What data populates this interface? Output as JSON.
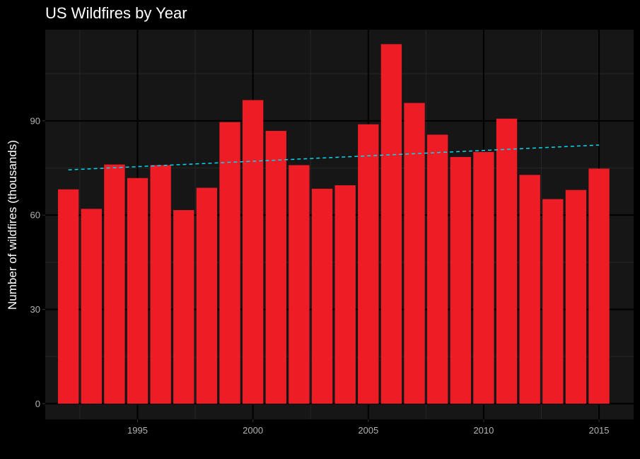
{
  "chart_data": {
    "type": "bar",
    "title": "US Wildfires by Year",
    "xlabel": "",
    "ylabel": "Number of wildfires (thousands)",
    "x": [
      1992,
      1993,
      1994,
      1995,
      1996,
      1997,
      1998,
      1999,
      2000,
      2001,
      2002,
      2003,
      2004,
      2005,
      2006,
      2007,
      2008,
      2009,
      2010,
      2011,
      2012,
      2013,
      2014,
      2015
    ],
    "values": [
      68.2,
      62.0,
      76.1,
      71.8,
      75.9,
      61.6,
      68.7,
      89.6,
      96.6,
      86.8,
      75.9,
      68.4,
      69.5,
      88.9,
      114.4,
      95.7,
      85.6,
      78.5,
      80.1,
      90.7,
      72.8,
      65.1,
      68.0,
      74.8
    ],
    "xticks": [
      "1995",
      "2000",
      "2005",
      "2010",
      "2015"
    ],
    "yticks": [
      "0",
      "30",
      "60",
      "90"
    ],
    "xlim": [
      1991.0,
      2016.5
    ],
    "ylim": [
      -5.0,
      119.0
    ],
    "trend": {
      "style": "dashed",
      "x": [
        1992,
        2015
      ],
      "y": [
        74.4,
        82.3
      ]
    },
    "colors": {
      "background": "#000000",
      "panel": "#161616",
      "grid_major": "#000000",
      "grid_minor": "#262626",
      "bar": "#ee1c25",
      "trend": "#00d8f0",
      "tick_text": "#b3b3b3",
      "title_text": "#ffffff"
    },
    "grid": true
  }
}
